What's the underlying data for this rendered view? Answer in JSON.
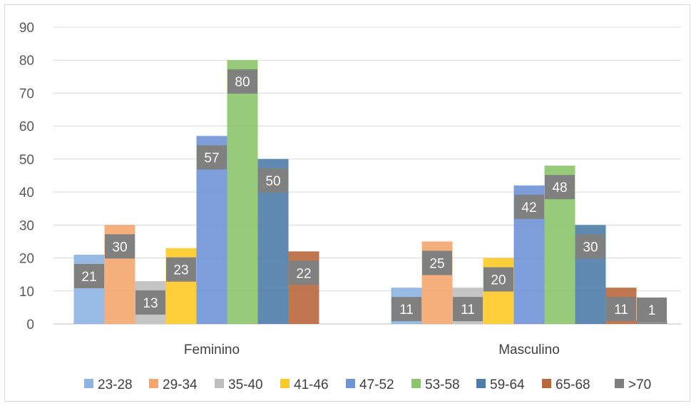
{
  "chart_data": {
    "type": "bar",
    "categories": [
      "Feminino",
      "Masculino"
    ],
    "series": [
      {
        "name": "23-28",
        "color": "#8db4e2",
        "values": [
          21,
          11
        ]
      },
      {
        "name": "29-34",
        "color": "#f4a66e",
        "values": [
          30,
          25
        ]
      },
      {
        "name": "35-40",
        "color": "#bfbfbf",
        "values": [
          13,
          11
        ]
      },
      {
        "name": "41-46",
        "color": "#ffc926",
        "values": [
          23,
          20
        ]
      },
      {
        "name": "47-52",
        "color": "#6f94d6",
        "values": [
          57,
          42
        ]
      },
      {
        "name": "53-58",
        "color": "#8cc56a",
        "values": [
          80,
          48
        ]
      },
      {
        "name": "59-64",
        "color": "#4f7ca8",
        "values": [
          50,
          30
        ]
      },
      {
        "name": "65-68",
        "color": "#b9683c",
        "values": [
          22,
          11
        ]
      },
      {
        "name": ">70",
        "color": "#7f7f7f",
        "values": [
          null,
          1
        ]
      }
    ],
    "y_ticks": [
      0,
      10,
      20,
      30,
      40,
      50,
      60,
      70,
      80,
      90
    ],
    "ylim": [
      0,
      90
    ],
    "grid": true,
    "legend_position": "bottom",
    "data_label_color": "#808080"
  }
}
